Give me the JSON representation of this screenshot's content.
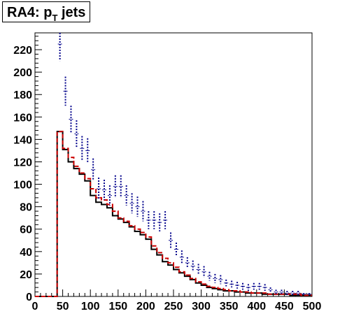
{
  "chart_data": {
    "type": "histogram",
    "title_prefix": "RA4: p",
    "title_sub": "T",
    "title_suffix": " jets",
    "xlabel": "",
    "ylabel": "",
    "xlim": [
      0,
      500
    ],
    "ylim": [
      0,
      235
    ],
    "x_ticks": [
      0,
      50,
      100,
      150,
      200,
      250,
      300,
      350,
      400,
      450,
      500
    ],
    "y_ticks": [
      0,
      20,
      40,
      60,
      80,
      100,
      120,
      140,
      160,
      180,
      200,
      220
    ],
    "grid": false,
    "legend": "none",
    "bin_edges": [
      0,
      10,
      20,
      30,
      40,
      50,
      60,
      70,
      80,
      90,
      100,
      110,
      120,
      130,
      140,
      150,
      160,
      170,
      180,
      190,
      200,
      210,
      220,
      230,
      240,
      250,
      260,
      270,
      280,
      290,
      300,
      310,
      320,
      330,
      340,
      350,
      360,
      370,
      380,
      390,
      400,
      410,
      420,
      430,
      440,
      450,
      460,
      470,
      480,
      490,
      500
    ],
    "series": [
      {
        "draw": "step",
        "color": "#000000",
        "values": [
          0,
          0,
          0,
          0,
          147,
          131,
          120,
          114,
          109,
          103,
          90,
          84,
          82,
          79,
          72,
          69,
          66,
          62,
          58,
          55,
          51,
          42,
          37,
          31,
          28,
          24,
          21,
          18,
          15,
          12,
          10,
          8,
          7,
          6,
          5,
          5,
          4,
          4,
          3,
          3,
          3,
          2,
          2,
          2,
          2,
          2,
          1,
          1,
          1,
          1
        ]
      },
      {
        "draw": "step",
        "color": "#cc0000",
        "dashed": true,
        "values": [
          0,
          0,
          0,
          0,
          147,
          132,
          124,
          116,
          110,
          105,
          96,
          88,
          86,
          82,
          76,
          70,
          67,
          63,
          60,
          57,
          53,
          45,
          39,
          34,
          30,
          26,
          22,
          19,
          16,
          13,
          11,
          9,
          8,
          7,
          6,
          5,
          5,
          4,
          4,
          3,
          3,
          3,
          2,
          2,
          2,
          2,
          2,
          2,
          1,
          1
        ]
      },
      {
        "draw": "errorbars",
        "color": "#00008b",
        "values": [
          null,
          null,
          null,
          null,
          225,
          183,
          158,
          145,
          132,
          130,
          113,
          96,
          95,
          90,
          98,
          98,
          90,
          83,
          80,
          76,
          68,
          68,
          66,
          68,
          50,
          42,
          35,
          30,
          27,
          24,
          22,
          18,
          16,
          15,
          12,
          11,
          10,
          9,
          8,
          9,
          9,
          8,
          6,
          4,
          4,
          3,
          3,
          3,
          2,
          2
        ],
        "errors": [
          null,
          null,
          null,
          null,
          15,
          13,
          12,
          12,
          11,
          11,
          10,
          10,
          9,
          9,
          10,
          10,
          9,
          9,
          9,
          9,
          8,
          8,
          8,
          8,
          7,
          6,
          6,
          5,
          5,
          5,
          5,
          4,
          4,
          4,
          3,
          3,
          3,
          3,
          3,
          3,
          3,
          3,
          2,
          2,
          2,
          2,
          2,
          2,
          1,
          1
        ]
      }
    ]
  }
}
